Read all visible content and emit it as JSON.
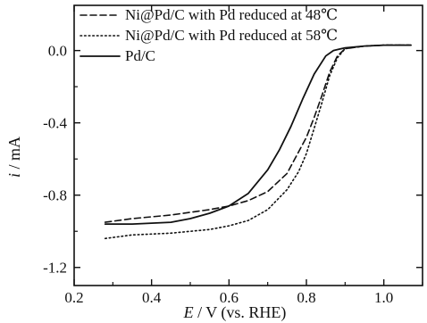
{
  "chart_data": {
    "type": "line",
    "xlabel": {
      "italic": "E",
      "rest": " / V (vs. RHE)"
    },
    "ylabel": {
      "italic": "i",
      "rest": " / mA"
    },
    "xlim": [
      0.2,
      1.1
    ],
    "ylim": [
      -1.3,
      0.25
    ],
    "x_ticks": [
      0.2,
      0.4,
      0.6,
      0.8,
      1.0
    ],
    "x_tick_labels": [
      "0.2",
      "0.4",
      "0.6",
      "0.8",
      "1.0"
    ],
    "y_ticks": [
      0.0,
      -0.4,
      -0.8,
      -1.2
    ],
    "y_tick_labels": [
      "0.0",
      "-0.4",
      "-0.8",
      "-1.2"
    ],
    "grid": false,
    "legend_position": "top-left",
    "series": [
      {
        "name": "Ni@Pd/C with Pd reduced at 48℃",
        "line_style": "dashed",
        "color": "#111111",
        "x": [
          0.28,
          0.35,
          0.45,
          0.55,
          0.6,
          0.65,
          0.7,
          0.75,
          0.8,
          0.82,
          0.84,
          0.86,
          0.88,
          0.9,
          0.95,
          1.0,
          1.07
        ],
        "y": [
          -0.95,
          -0.93,
          -0.91,
          -0.88,
          -0.86,
          -0.83,
          -0.78,
          -0.68,
          -0.48,
          -0.37,
          -0.25,
          -0.12,
          -0.03,
          0.01,
          0.025,
          0.03,
          0.03
        ]
      },
      {
        "name": "Ni@Pd/C with Pd reduced at 58℃",
        "line_style": "dotted",
        "color": "#111111",
        "x": [
          0.28,
          0.35,
          0.45,
          0.55,
          0.6,
          0.65,
          0.7,
          0.75,
          0.78,
          0.8,
          0.82,
          0.84,
          0.86,
          0.88,
          0.9,
          0.95,
          1.0,
          1.07
        ],
        "y": [
          -1.04,
          -1.02,
          -1.01,
          -0.99,
          -0.97,
          -0.94,
          -0.88,
          -0.77,
          -0.67,
          -0.57,
          -0.43,
          -0.29,
          -0.14,
          -0.04,
          0.01,
          0.025,
          0.03,
          0.03
        ]
      },
      {
        "name": "Pd/C",
        "line_style": "solid",
        "color": "#111111",
        "x": [
          0.28,
          0.35,
          0.45,
          0.5,
          0.55,
          0.6,
          0.65,
          0.7,
          0.73,
          0.76,
          0.79,
          0.82,
          0.85,
          0.87,
          0.9,
          0.95,
          1.0,
          1.07
        ],
        "y": [
          -0.96,
          -0.96,
          -0.95,
          -0.93,
          -0.9,
          -0.86,
          -0.79,
          -0.66,
          -0.55,
          -0.42,
          -0.27,
          -0.13,
          -0.03,
          0.0,
          0.015,
          0.025,
          0.03,
          0.03
        ]
      }
    ]
  }
}
